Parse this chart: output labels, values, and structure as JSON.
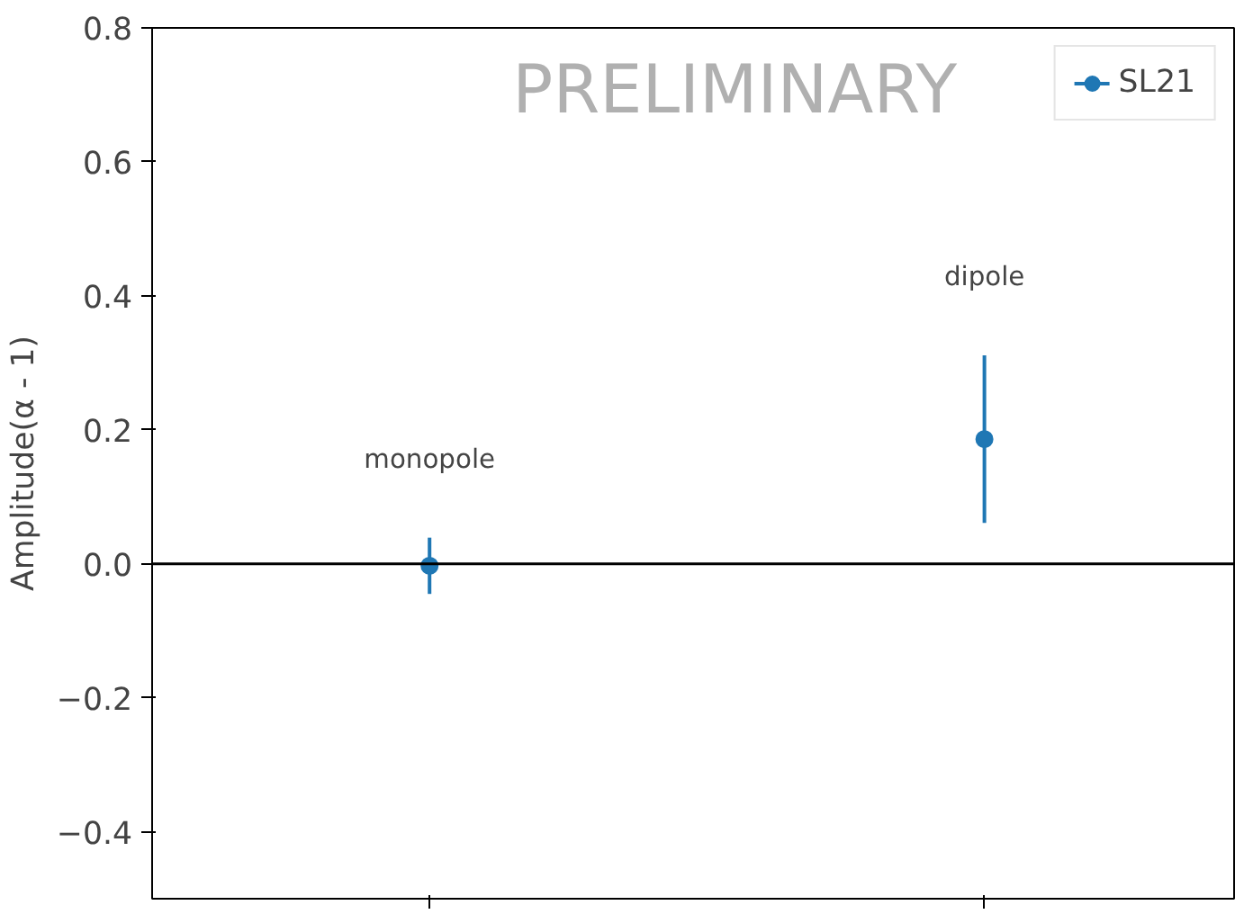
{
  "chart_data": {
    "type": "scatter",
    "ylabel": "Amplitude(α - 1)",
    "categories": [
      null,
      null
    ],
    "series": [
      {
        "name": "SL21",
        "color": "#1f77b4",
        "values": [
          -0.003,
          0.186
        ],
        "errors": [
          0.042,
          0.125
        ]
      }
    ],
    "ylim": [
      -0.5,
      0.8
    ],
    "yticks": [
      {
        "value": -0.4,
        "label": "−0.4"
      },
      {
        "value": -0.2,
        "label": "−0.2"
      },
      {
        "value": 0.0,
        "label": "0.0"
      },
      {
        "value": 0.2,
        "label": "0.2"
      },
      {
        "value": 0.4,
        "label": "0.4"
      },
      {
        "value": 0.6,
        "label": "0.6"
      },
      {
        "value": 0.8,
        "label": "0.8"
      }
    ],
    "ref_lines": [
      {
        "axis": "y",
        "value": 0,
        "color": "#000000"
      }
    ],
    "annotations": [
      "monopole",
      "dipole",
      "PRELIMINARY"
    ],
    "marker": "circle",
    "grid": false,
    "legend": "top right",
    "tick_labels": "y"
  }
}
